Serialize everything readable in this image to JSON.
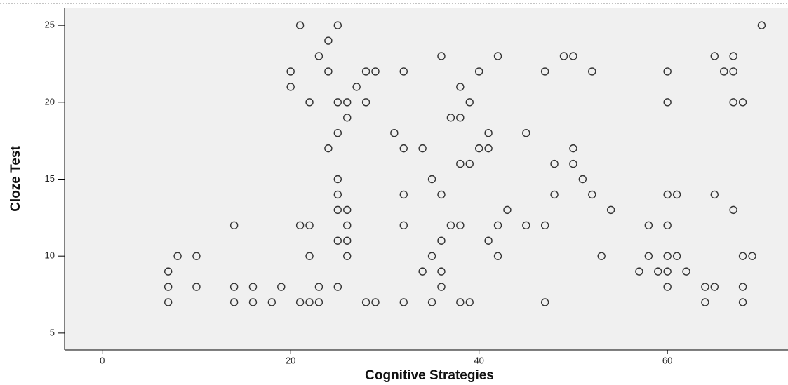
{
  "chart_data": {
    "type": "scatter",
    "x_label": "Cognitive Strategies",
    "y_label": "Cloze Test",
    "x": [
      21,
      25,
      70,
      24,
      23,
      36,
      42,
      49,
      50,
      65,
      67,
      20,
      24,
      28,
      29,
      32,
      40,
      47,
      52,
      60,
      66,
      67,
      20,
      27,
      38,
      22,
      25,
      26,
      28,
      39,
      60,
      67,
      68,
      26,
      37,
      38,
      25,
      31,
      41,
      45,
      24,
      32,
      34,
      40,
      41,
      50,
      38,
      39,
      48,
      50,
      25,
      35,
      51,
      25,
      32,
      36,
      48,
      52,
      60,
      61,
      65,
      25,
      26,
      43,
      54,
      67,
      14,
      21,
      22,
      26,
      32,
      37,
      38,
      42,
      45,
      47,
      58,
      60,
      25,
      26,
      36,
      41,
      8,
      10,
      22,
      26,
      35,
      42,
      53,
      58,
      60,
      61,
      68,
      69,
      7,
      34,
      36,
      57,
      59,
      60,
      62,
      7,
      10,
      14,
      16,
      19,
      23,
      25,
      36,
      60,
      64,
      65,
      68,
      7,
      14,
      16,
      18,
      21,
      22,
      23,
      28,
      29,
      32,
      35,
      38,
      39,
      47,
      64,
      68
    ],
    "y": [
      25,
      25,
      25,
      24,
      23,
      23,
      23,
      23,
      23,
      23,
      23,
      22,
      22,
      22,
      22,
      22,
      22,
      22,
      22,
      22,
      22,
      22,
      21,
      21,
      21,
      20,
      20,
      20,
      20,
      20,
      20,
      20,
      20,
      19,
      19,
      19,
      18,
      18,
      18,
      18,
      17,
      17,
      17,
      17,
      17,
      17,
      16,
      16,
      16,
      16,
      15,
      15,
      15,
      14,
      14,
      14,
      14,
      14,
      14,
      14,
      14,
      13,
      13,
      13,
      13,
      13,
      12,
      12,
      12,
      12,
      12,
      12,
      12,
      12,
      12,
      12,
      12,
      12,
      11,
      11,
      11,
      11,
      10,
      10,
      10,
      10,
      10,
      10,
      10,
      10,
      10,
      10,
      10,
      10,
      9,
      9,
      9,
      9,
      9,
      9,
      9,
      8,
      8,
      8,
      8,
      8,
      8,
      8,
      8,
      8,
      8,
      8,
      8,
      7,
      7,
      7,
      7,
      7,
      7,
      7,
      7,
      7,
      7,
      7,
      7,
      7,
      7,
      7,
      7
    ],
    "color": "#333333",
    "xlim": [
      -4,
      72.8
    ],
    "ylim": [
      3.9,
      26.1
    ],
    "xticks": [
      0,
      20,
      40,
      60
    ],
    "yticks": [
      5,
      10,
      15,
      20,
      25
    ]
  }
}
